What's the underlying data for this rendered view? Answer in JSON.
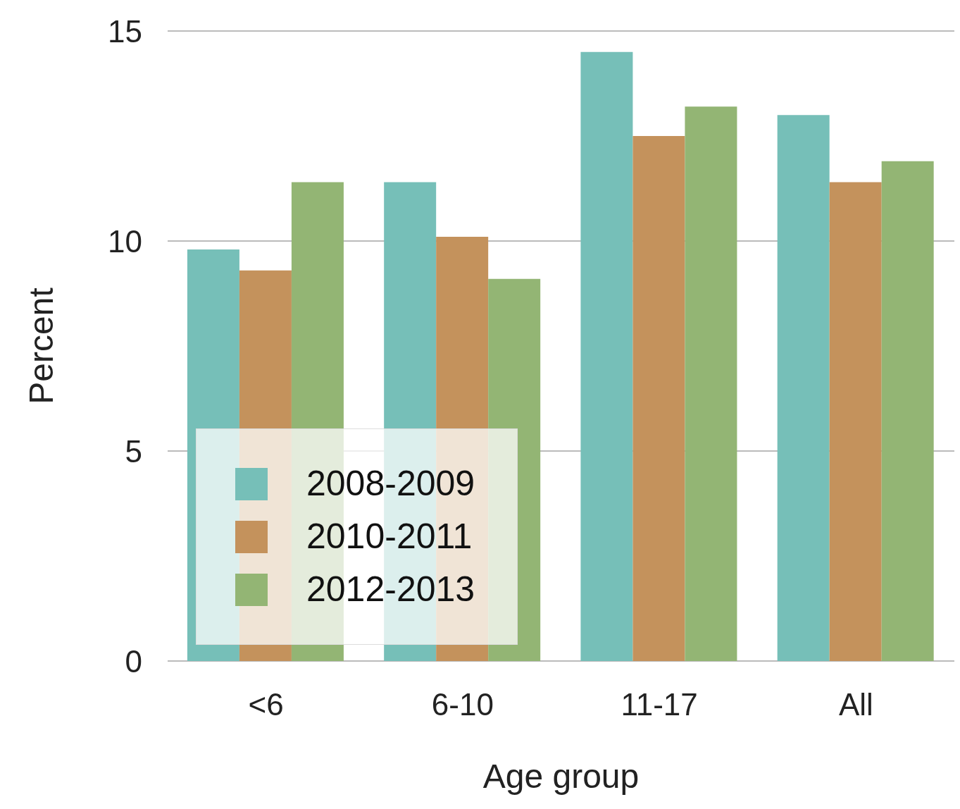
{
  "chart_data": {
    "type": "bar",
    "xlabel": "Age group",
    "ylabel": "Percent",
    "categories": [
      "<6",
      "6-10",
      "11-17",
      "All"
    ],
    "series": [
      {
        "name": "2008-2009",
        "color": "#76bfb8",
        "values": [
          9.8,
          11.4,
          14.5,
          13.0
        ]
      },
      {
        "name": "2010-2011",
        "color": "#c4925c",
        "values": [
          9.3,
          10.1,
          12.5,
          11.4
        ]
      },
      {
        "name": "2012-2013",
        "color": "#93b574",
        "values": [
          11.4,
          9.1,
          13.2,
          11.9
        ]
      }
    ],
    "ylim": [
      0,
      15
    ],
    "yticks": [
      0,
      5,
      10,
      15
    ],
    "grid": "y",
    "legend": "bottom left"
  }
}
